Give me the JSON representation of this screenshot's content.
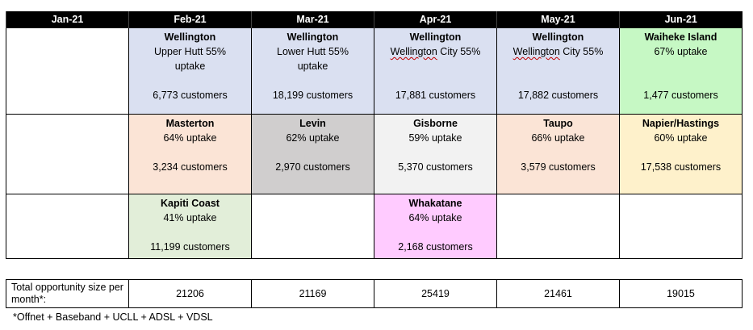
{
  "colors": {
    "blue": "#dae0f1",
    "green": "#c6f8c4",
    "peach": "#fbe4d6",
    "grey": "#d0cece",
    "lightgrey": "#f2f2f2",
    "yellow": "#fef1cb",
    "sage": "#e2eed9",
    "pink": "#ffcbff",
    "white": "#ffffff"
  },
  "months": [
    "Jan-21",
    "Feb-21",
    "Mar-21",
    "Apr-21",
    "May-21",
    "Jun-21"
  ],
  "rows": [
    [
      {
        "empty": true
      },
      {
        "color": "blue",
        "location": "Wellington",
        "area": "Upper Hutt 55%",
        "uptake": "uptake",
        "customers": "6,773 customers"
      },
      {
        "color": "blue",
        "location": "Wellington",
        "area": "Lower Hutt 55%",
        "uptake": "uptake",
        "customers": "18,199 customers"
      },
      {
        "color": "blue",
        "location": "Wellington",
        "area": "Wellington City 55%",
        "area_underline": "Wellington",
        "uptake": "",
        "customers": "17,881 customers"
      },
      {
        "color": "blue",
        "location": "Wellington",
        "area": "Wellington City 55%",
        "area_underline": "Wellington",
        "uptake": "",
        "customers": "17,882 customers"
      },
      {
        "color": "green",
        "location": "Waiheke Island",
        "area": "67% uptake",
        "uptake": "",
        "customers": "1,477 customers"
      }
    ],
    [
      {
        "empty": true
      },
      {
        "color": "peach",
        "location": "Masterton",
        "area": "64% uptake",
        "customers": "3,234 customers"
      },
      {
        "color": "grey",
        "location": "Levin",
        "area": "62% uptake",
        "customers": "2,970 customers"
      },
      {
        "color": "lightgrey",
        "location": "Gisborne",
        "area": "59% uptake",
        "customers": "5,370 customers"
      },
      {
        "color": "peach",
        "location": "Taupo",
        "area": "66% uptake",
        "customers": "3,579 customers"
      },
      {
        "color": "yellow",
        "location": "Napier/Hastings",
        "area": "60% uptake",
        "customers": "17,538 customers"
      }
    ],
    [
      {
        "empty": true
      },
      {
        "color": "sage",
        "location": "Kapiti Coast",
        "area": "41% uptake",
        "customers": "11,199 customers"
      },
      {
        "empty": true
      },
      {
        "color": "pink",
        "location": "Whakatane",
        "area": "64% uptake",
        "customers": "2,168 customers"
      },
      {
        "empty": true
      },
      {
        "empty": true
      }
    ]
  ],
  "totals": {
    "label": "Total opportunity size per month*:",
    "values": [
      "21206",
      "21169",
      "25419",
      "21461",
      "19015"
    ]
  },
  "footnote": "*Offnet + Baseband + UCLL + ADSL + VDSL"
}
